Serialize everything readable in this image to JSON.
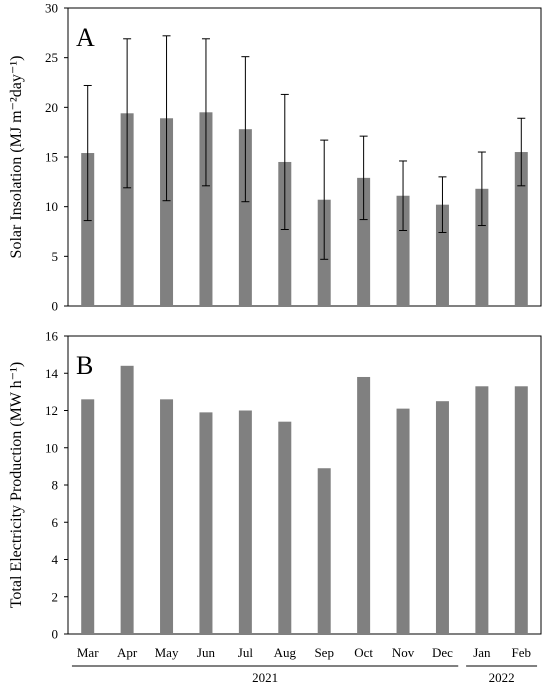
{
  "chart_data": [
    {
      "type": "bar",
      "panel_label": "A",
      "ylabel": "Solar Insolation (MJ m⁻²day⁻¹)",
      "ylim": [
        0,
        30
      ],
      "yticks": [
        "0",
        "5",
        "10",
        "15",
        "20",
        "25",
        "30"
      ],
      "categories": [
        "Mar",
        "Apr",
        "May",
        "Jun",
        "Jul",
        "Aug",
        "Sep",
        "Oct",
        "Nov",
        "Dec",
        "Jan",
        "Feb"
      ],
      "values": [
        15.4,
        19.4,
        18.9,
        19.5,
        17.8,
        14.5,
        10.7,
        12.9,
        11.1,
        10.2,
        11.8,
        15.5
      ],
      "error": [
        6.8,
        7.5,
        8.3,
        7.4,
        7.3,
        6.8,
        6.0,
        4.2,
        3.5,
        2.8,
        3.7,
        3.4
      ],
      "bar_color": "#808080",
      "grid": false
    },
    {
      "type": "bar",
      "panel_label": "B",
      "ylabel": "Total Electricity Production (MW h⁻¹)",
      "ylim": [
        0,
        16
      ],
      "yticks": [
        "0",
        "2",
        "4",
        "6",
        "8",
        "10",
        "12",
        "14",
        "16"
      ],
      "categories": [
        "Mar",
        "Apr",
        "May",
        "Jun",
        "Jul",
        "Aug",
        "Sep",
        "Oct",
        "Nov",
        "Dec",
        "Jan",
        "Feb"
      ],
      "values": [
        12.6,
        14.4,
        12.6,
        11.9,
        12.0,
        11.4,
        8.9,
        13.8,
        12.1,
        12.5,
        13.3,
        13.3
      ],
      "bar_color": "#808080",
      "grid": false
    }
  ],
  "x_axis": {
    "categories": [
      "Mar",
      "Apr",
      "May",
      "Jun",
      "Jul",
      "Aug",
      "Sep",
      "Oct",
      "Nov",
      "Dec",
      "Jan",
      "Feb"
    ],
    "year_groups": [
      {
        "label": "2021",
        "from": 0,
        "to": 9
      },
      {
        "label": "2022",
        "from": 10,
        "to": 11
      }
    ]
  }
}
